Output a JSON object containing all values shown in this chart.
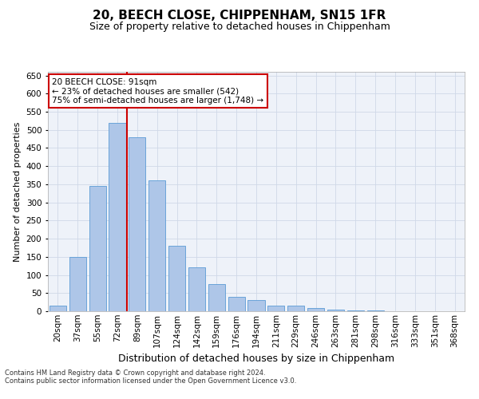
{
  "title1": "20, BEECH CLOSE, CHIPPENHAM, SN15 1FR",
  "title2": "Size of property relative to detached houses in Chippenham",
  "xlabel": "Distribution of detached houses by size in Chippenham",
  "ylabel": "Number of detached properties",
  "categories": [
    "20sqm",
    "37sqm",
    "55sqm",
    "72sqm",
    "89sqm",
    "107sqm",
    "124sqm",
    "142sqm",
    "159sqm",
    "176sqm",
    "194sqm",
    "211sqm",
    "229sqm",
    "246sqm",
    "263sqm",
    "281sqm",
    "298sqm",
    "316sqm",
    "333sqm",
    "351sqm",
    "368sqm"
  ],
  "values": [
    15,
    150,
    345,
    520,
    480,
    360,
    180,
    120,
    75,
    40,
    30,
    15,
    15,
    8,
    5,
    3,
    2,
    1,
    1,
    1,
    1
  ],
  "bar_color": "#aec6e8",
  "bar_edge_color": "#5b9bd5",
  "grid_color": "#d0d8e8",
  "vline_color": "#cc0000",
  "vline_x_index": 4,
  "annotation_text": "20 BEECH CLOSE: 91sqm\n← 23% of detached houses are smaller (542)\n75% of semi-detached houses are larger (1,748) →",
  "annotation_box_color": "#ffffff",
  "annotation_box_edge": "#cc0000",
  "ylim": [
    0,
    660
  ],
  "yticks": [
    0,
    50,
    100,
    150,
    200,
    250,
    300,
    350,
    400,
    450,
    500,
    550,
    600,
    650
  ],
  "footer1": "Contains HM Land Registry data © Crown copyright and database right 2024.",
  "footer2": "Contains public sector information licensed under the Open Government Licence v3.0.",
  "bg_color": "#eef2f9",
  "title1_fontsize": 11,
  "title2_fontsize": 9,
  "xlabel_fontsize": 9,
  "ylabel_fontsize": 8,
  "tick_fontsize": 7.5,
  "annotation_fontsize": 7.5,
  "footer_fontsize": 6
}
